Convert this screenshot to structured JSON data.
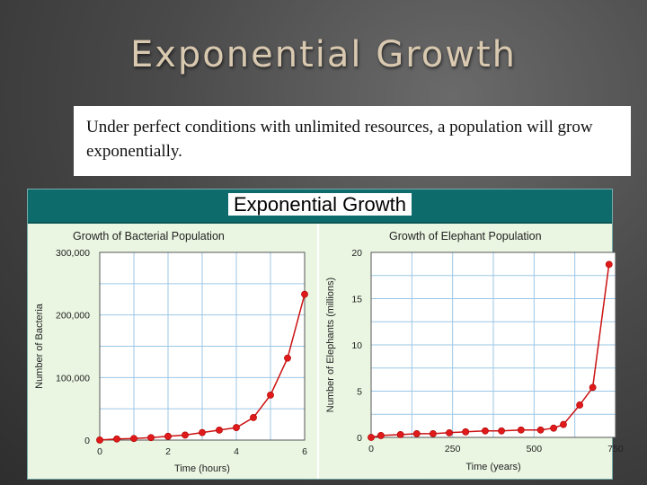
{
  "slide": {
    "title": "Exponential Growth",
    "body": "Under perfect conditions with unlimited resources, a population will grow exponentially.",
    "figure_title": "Exponential Growth"
  },
  "chart_data": [
    {
      "type": "line",
      "title": "Growth of Bacterial Population",
      "xlabel": "Time (hours)",
      "ylabel": "Number of Bacteria",
      "xlim": [
        0,
        6
      ],
      "ylim": [
        0,
        300000
      ],
      "xticks": [
        0,
        2,
        4,
        6
      ],
      "xtick_labels": [
        "0",
        "2",
        "4",
        "6"
      ],
      "yticks": [
        0,
        100000,
        200000,
        300000
      ],
      "ytick_labels": [
        "0",
        "100,000",
        "200,000",
        "300,000"
      ],
      "grid": true,
      "line_color": "#cc1111",
      "series": [
        {
          "x": [
            0,
            0.5,
            1,
            1.5,
            2,
            2.5,
            3,
            3.5,
            4,
            4.5,
            5,
            5.5,
            6
          ],
          "y": [
            100,
            1800,
            2500,
            4000,
            6000,
            8000,
            12000,
            16000,
            20000,
            36000,
            72000,
            131000,
            233000
          ]
        }
      ]
    },
    {
      "type": "line",
      "title": "Growth of Elephant Population",
      "xlabel": "Time (years)",
      "ylabel": "Number of Elephants (millions)",
      "xlim": [
        0,
        750
      ],
      "ylim": [
        0,
        20
      ],
      "xticks": [
        0,
        250,
        500,
        750
      ],
      "xtick_labels": [
        "0",
        "250",
        "500",
        "750"
      ],
      "yticks": [
        0,
        5,
        10,
        15,
        20
      ],
      "ytick_labels": [
        "0",
        "5",
        "10",
        "15",
        "20"
      ],
      "grid": true,
      "line_color": "#cc1111",
      "series": [
        {
          "x": [
            0,
            30,
            90,
            140,
            190,
            240,
            290,
            350,
            400,
            460,
            520,
            560,
            590,
            640,
            680,
            730
          ],
          "y": [
            0.0,
            0.2,
            0.3,
            0.4,
            0.4,
            0.5,
            0.6,
            0.7,
            0.7,
            0.8,
            0.8,
            1.0,
            1.4,
            3.5,
            5.4,
            18.7
          ]
        }
      ]
    }
  ]
}
